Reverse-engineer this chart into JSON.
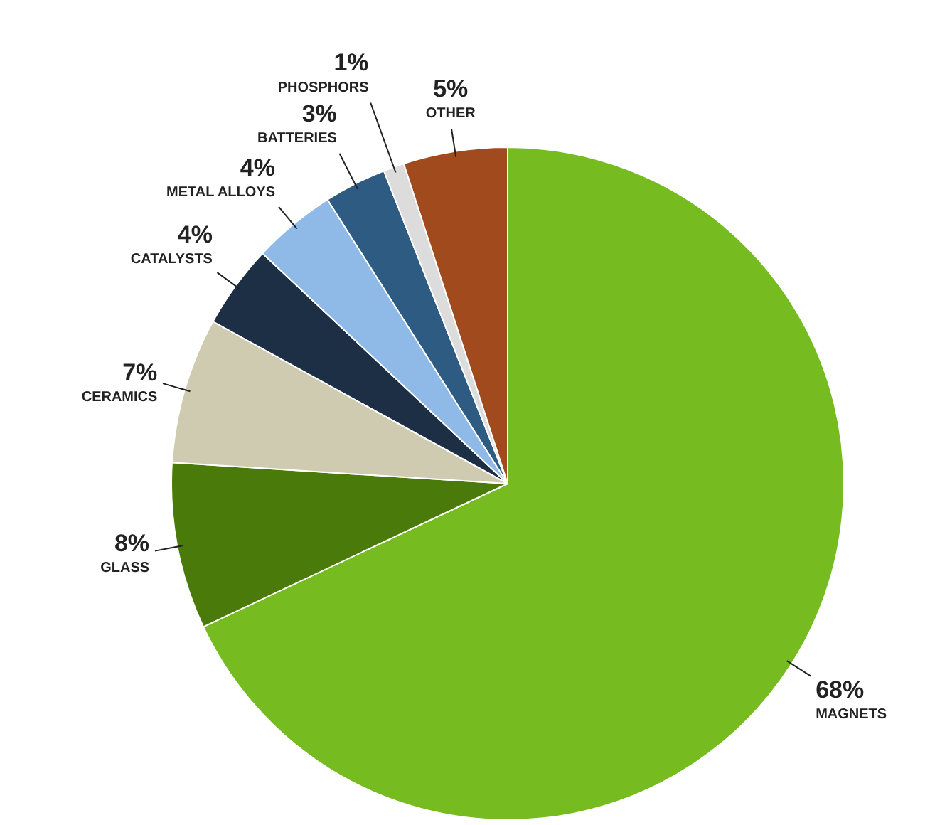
{
  "chart_data": {
    "type": "pie",
    "categories": [
      "MAGNETS",
      "GLASS",
      "CERAMICS",
      "CATALYSTS",
      "METAL ALLOYS",
      "BATTERIES",
      "PHOSPHORS",
      "OTHER"
    ],
    "values": [
      68,
      8,
      7,
      4,
      4,
      3,
      1,
      5
    ],
    "value_labels": [
      "68%",
      "8%",
      "7%",
      "4%",
      "4%",
      "3%",
      "1%",
      "5%"
    ],
    "colors": [
      "#76bc21",
      "#4a7a0a",
      "#cfcbb0",
      "#1c2f45",
      "#8fb9e6",
      "#2e5b82",
      "#dcdcdc",
      "#a04a1e"
    ],
    "legend": false
  }
}
